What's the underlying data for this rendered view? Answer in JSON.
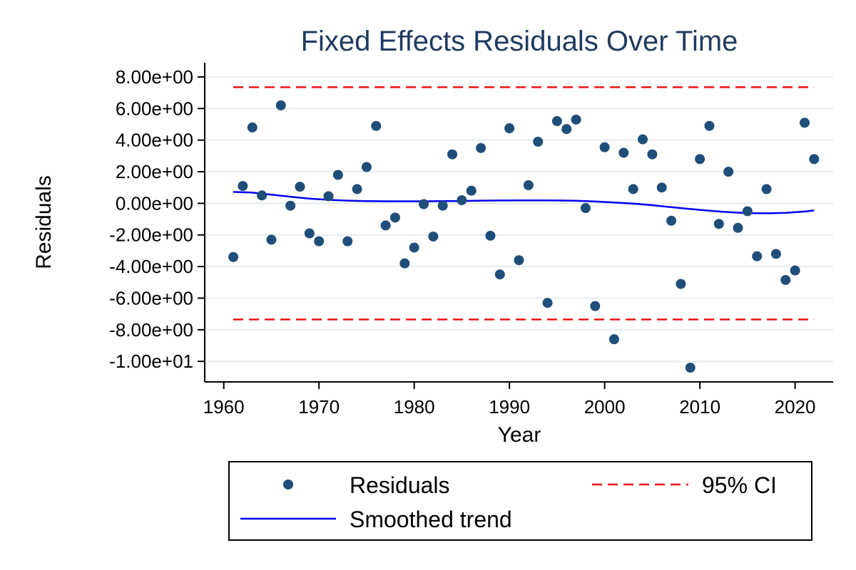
{
  "chart_data": {
    "type": "scatter",
    "title": "Fixed Effects Residuals Over Time",
    "xlabel": "Year",
    "ylabel": "Residuals",
    "xlim": [
      1958,
      2024
    ],
    "ylim": [
      -11.3,
      8.9
    ],
    "x_ticks": [
      1960,
      1970,
      1980,
      1990,
      2000,
      2010,
      2020
    ],
    "y_ticks": [
      8,
      6,
      4,
      2,
      0,
      -2,
      -4,
      -6,
      -8,
      -10
    ],
    "y_tick_labels": [
      "8.00e+00",
      "6.00e+00",
      "4.00e+00",
      "2.00e+00",
      "0.00e+00",
      "-2.00e+00",
      "-4.00e+00",
      "-6.00e+00",
      "-8.00e+00",
      "-1.00e+01"
    ],
    "grid": true,
    "legend_position": "bottom",
    "series": [
      {
        "name": "Residuals",
        "kind": "scatter",
        "color": "#1f4e79",
        "points": [
          [
            1961,
            -3.4
          ],
          [
            1962,
            1.1
          ],
          [
            1963,
            4.8
          ],
          [
            1964,
            0.5
          ],
          [
            1965,
            -2.3
          ],
          [
            1966,
            6.2
          ],
          [
            1967,
            -0.15
          ],
          [
            1968,
            1.05
          ],
          [
            1969,
            -1.9
          ],
          [
            1970,
            -2.4
          ],
          [
            1971,
            0.45
          ],
          [
            1972,
            1.8
          ],
          [
            1973,
            -2.4
          ],
          [
            1974,
            0.9
          ],
          [
            1975,
            2.3
          ],
          [
            1976,
            4.9
          ],
          [
            1977,
            -1.4
          ],
          [
            1978,
            -0.9
          ],
          [
            1979,
            -3.8
          ],
          [
            1980,
            -2.8
          ],
          [
            1981,
            -0.05
          ],
          [
            1982,
            -2.1
          ],
          [
            1983,
            -0.15
          ],
          [
            1984,
            3.1
          ],
          [
            1985,
            0.2
          ],
          [
            1986,
            0.8
          ],
          [
            1987,
            3.5
          ],
          [
            1988,
            -2.05
          ],
          [
            1989,
            -4.5
          ],
          [
            1990,
            4.75
          ],
          [
            1991,
            -3.6
          ],
          [
            1992,
            1.15
          ],
          [
            1993,
            3.9
          ],
          [
            1994,
            -6.3
          ],
          [
            1995,
            5.2
          ],
          [
            1996,
            4.7
          ],
          [
            1997,
            5.3
          ],
          [
            1998,
            -0.3
          ],
          [
            1999,
            -6.5
          ],
          [
            2000,
            3.55
          ],
          [
            2001,
            -8.6
          ],
          [
            2002,
            3.2
          ],
          [
            2003,
            0.9
          ],
          [
            2004,
            4.05
          ],
          [
            2005,
            3.1
          ],
          [
            2006,
            1.0
          ],
          [
            2007,
            -1.1
          ],
          [
            2008,
            -5.1
          ],
          [
            2009,
            -10.4
          ],
          [
            2010,
            2.8
          ],
          [
            2011,
            4.9
          ],
          [
            2012,
            -1.3
          ],
          [
            2013,
            2.0
          ],
          [
            2014,
            -1.55
          ],
          [
            2015,
            -0.5
          ],
          [
            2016,
            -3.35
          ],
          [
            2017,
            0.9
          ],
          [
            2018,
            -3.2
          ],
          [
            2019,
            -4.85
          ],
          [
            2020,
            -4.25
          ],
          [
            2021,
            5.1
          ],
          [
            2022,
            2.8
          ]
        ]
      },
      {
        "name": "Smoothed trend",
        "kind": "line",
        "color": "#0000ee",
        "points": [
          [
            1961,
            0.72
          ],
          [
            1963,
            0.68
          ],
          [
            1965,
            0.55
          ],
          [
            1967,
            0.42
          ],
          [
            1969,
            0.3
          ],
          [
            1971,
            0.22
          ],
          [
            1973,
            0.17
          ],
          [
            1975,
            0.14
          ],
          [
            1977,
            0.13
          ],
          [
            1979,
            0.13
          ],
          [
            1981,
            0.13
          ],
          [
            1983,
            0.14
          ],
          [
            1985,
            0.15
          ],
          [
            1987,
            0.17
          ],
          [
            1989,
            0.18
          ],
          [
            1991,
            0.19
          ],
          [
            1993,
            0.19
          ],
          [
            1995,
            0.18
          ],
          [
            1997,
            0.16
          ],
          [
            1999,
            0.12
          ],
          [
            2001,
            0.05
          ],
          [
            2003,
            -0.02
          ],
          [
            2005,
            -0.12
          ],
          [
            2007,
            -0.24
          ],
          [
            2009,
            -0.36
          ],
          [
            2011,
            -0.47
          ],
          [
            2013,
            -0.56
          ],
          [
            2015,
            -0.62
          ],
          [
            2017,
            -0.63
          ],
          [
            2019,
            -0.6
          ],
          [
            2021,
            -0.52
          ],
          [
            2022,
            -0.45
          ]
        ]
      },
      {
        "name": "95% CI",
        "kind": "dashed-hline",
        "color": "#ee1111",
        "x_range": [
          1961,
          2022
        ],
        "values": [
          7.35,
          -7.35
        ]
      }
    ]
  }
}
